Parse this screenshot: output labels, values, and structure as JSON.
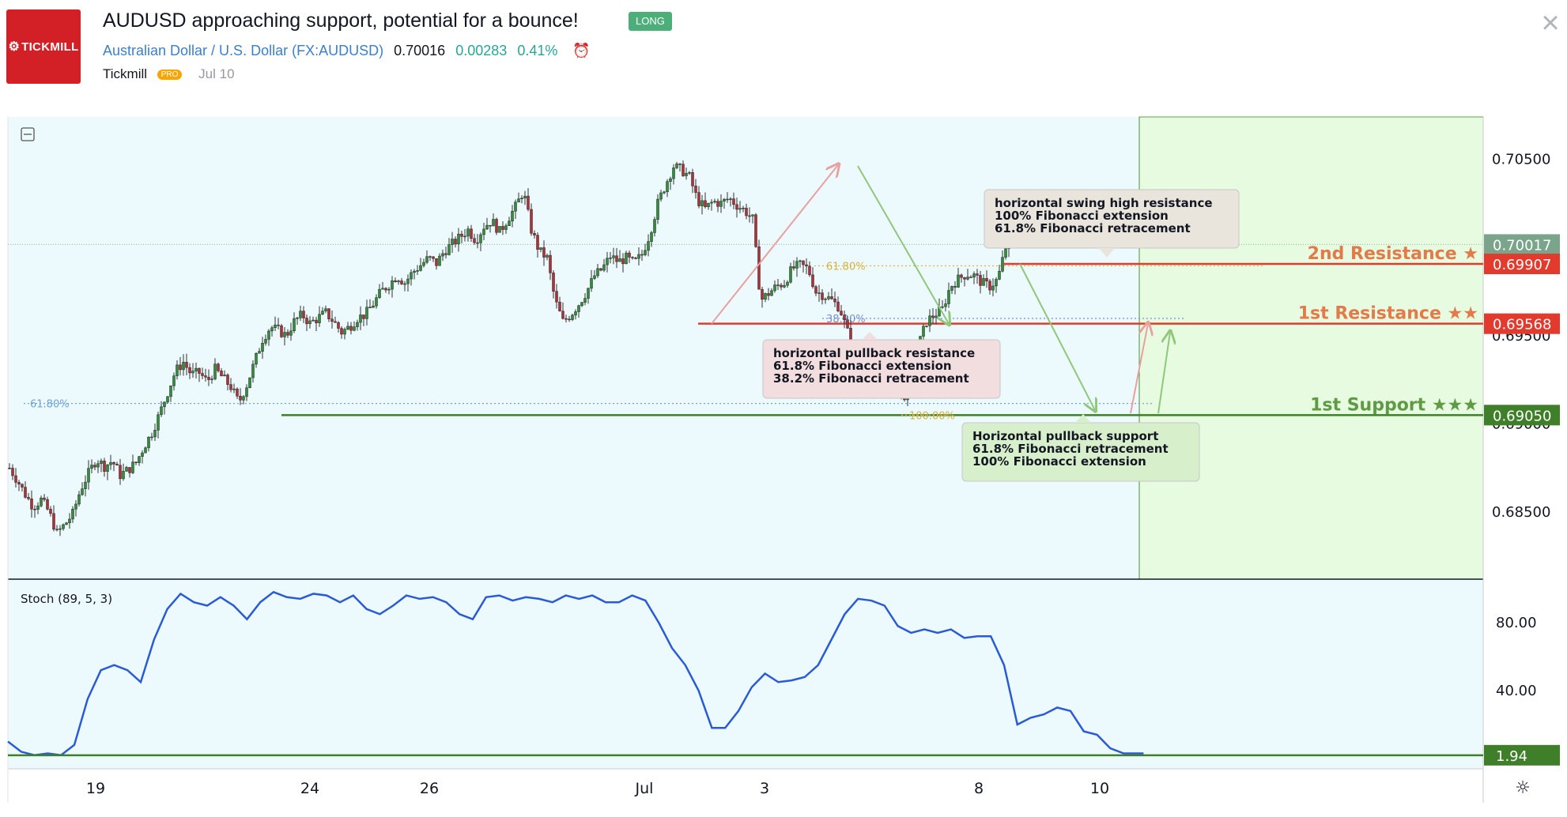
{
  "header": {
    "logo_text": "TICKMILL",
    "title": "AUDUSD approaching support, potential for a bounce!",
    "badge": "LONG",
    "symbol_name": "Australian Dollar / U.S. Dollar",
    "symbol_code": "(FX:AUDUSD)",
    "last_price": "0.70016",
    "change": "0.00283",
    "change_pct": "0.41%",
    "author": "Tickmill",
    "author_badge": "PRO",
    "date": "Jul 10"
  },
  "chart_data": {
    "type": "candlestick",
    "instrument": "AUDUSD",
    "x_ticks": [
      "19",
      "24",
      "26",
      "Jul",
      "3",
      "8",
      "10"
    ],
    "y_ticks": [
      "0.70500",
      "0.68500"
    ],
    "ylim": [
      0.6812,
      0.7074
    ],
    "price_series": [
      [
        0,
        0.6875
      ],
      [
        10,
        0.6868
      ],
      [
        20,
        0.686
      ],
      [
        30,
        0.6853
      ],
      [
        40,
        0.6857
      ],
      [
        50,
        0.685
      ],
      [
        60,
        0.6838
      ],
      [
        70,
        0.6843
      ],
      [
        80,
        0.6849
      ],
      [
        90,
        0.6863
      ],
      [
        100,
        0.6872
      ],
      [
        110,
        0.688
      ],
      [
        120,
        0.6876
      ],
      [
        130,
        0.6879
      ],
      [
        140,
        0.6871
      ],
      [
        150,
        0.6874
      ],
      [
        160,
        0.6878
      ],
      [
        170,
        0.6887
      ],
      [
        180,
        0.6895
      ],
      [
        190,
        0.6906
      ],
      [
        200,
        0.6918
      ],
      [
        210,
        0.693
      ],
      [
        220,
        0.6935
      ],
      [
        230,
        0.6928
      ],
      [
        240,
        0.6929
      ],
      [
        250,
        0.6924
      ],
      [
        260,
        0.6931
      ],
      [
        270,
        0.6926
      ],
      [
        280,
        0.6921
      ],
      [
        290,
        0.6912
      ],
      [
        300,
        0.6922
      ],
      [
        310,
        0.6935
      ],
      [
        320,
        0.6948
      ],
      [
        330,
        0.6955
      ],
      [
        340,
        0.6953
      ],
      [
        350,
        0.695
      ],
      [
        360,
        0.6958
      ],
      [
        370,
        0.6962
      ],
      [
        380,
        0.6957
      ],
      [
        390,
        0.696
      ],
      [
        400,
        0.6963
      ],
      [
        410,
        0.6958
      ],
      [
        420,
        0.6952
      ],
      [
        430,
        0.6955
      ],
      [
        440,
        0.696
      ],
      [
        450,
        0.6962
      ],
      [
        460,
        0.6968
      ],
      [
        470,
        0.6975
      ],
      [
        480,
        0.6979
      ],
      [
        490,
        0.6984
      ],
      [
        500,
        0.698
      ],
      [
        510,
        0.6986
      ],
      [
        520,
        0.699
      ],
      [
        530,
        0.6994
      ],
      [
        540,
        0.6991
      ],
      [
        550,
        0.6998
      ],
      [
        560,
        0.7002
      ],
      [
        570,
        0.7006
      ],
      [
        580,
        0.701
      ],
      [
        590,
        0.7004
      ],
      [
        600,
        0.7012
      ],
      [
        610,
        0.7015
      ],
      [
        620,
        0.7009
      ],
      [
        630,
        0.7016
      ],
      [
        640,
        0.7023
      ],
      [
        650,
        0.7032
      ],
      [
        660,
        0.701
      ],
      [
        670,
        0.6998
      ],
      [
        680,
        0.6994
      ],
      [
        690,
        0.697
      ],
      [
        700,
        0.6958
      ],
      [
        710,
        0.6962
      ],
      [
        720,
        0.6968
      ],
      [
        730,
        0.6975
      ],
      [
        740,
        0.6984
      ],
      [
        750,
        0.6988
      ],
      [
        760,
        0.6995
      ],
      [
        770,
        0.6992
      ],
      [
        780,
        0.6994
      ],
      [
        790,
        0.6991
      ],
      [
        800,
        0.6996
      ],
      [
        810,
        0.7008
      ],
      [
        820,
        0.7025
      ],
      [
        830,
        0.7036
      ],
      [
        840,
        0.7046
      ],
      [
        850,
        0.7044
      ],
      [
        860,
        0.704
      ],
      [
        870,
        0.7027
      ],
      [
        880,
        0.7022
      ],
      [
        890,
        0.7026
      ],
      [
        900,
        0.7025
      ],
      [
        910,
        0.7028
      ],
      [
        920,
        0.7024
      ],
      [
        930,
        0.7021
      ],
      [
        940,
        0.7016
      ],
      [
        950,
        0.697
      ],
      [
        960,
        0.6974
      ],
      [
        970,
        0.6978
      ],
      [
        980,
        0.698
      ],
      [
        990,
        0.6988
      ],
      [
        1000,
        0.699
      ],
      [
        1010,
        0.6988
      ],
      [
        1020,
        0.6975
      ],
      [
        1030,
        0.6973
      ],
      [
        1040,
        0.697
      ],
      [
        1050,
        0.6966
      ],
      [
        1060,
        0.6952
      ],
      [
        1070,
        0.6936
      ],
      [
        1080,
        0.6928
      ],
      [
        1090,
        0.6925
      ],
      [
        1100,
        0.6924
      ],
      [
        1110,
        0.6921
      ],
      [
        1120,
        0.6922
      ],
      [
        1130,
        0.6916
      ],
      [
        1140,
        0.6918
      ],
      [
        1150,
        0.6945
      ],
      [
        1160,
        0.6958
      ],
      [
        1170,
        0.6962
      ],
      [
        1180,
        0.6965
      ],
      [
        1190,
        0.6978
      ],
      [
        1200,
        0.6982
      ],
      [
        1210,
        0.6985
      ],
      [
        1220,
        0.6984
      ],
      [
        1230,
        0.698
      ],
      [
        1240,
        0.6978
      ],
      [
        1250,
        0.6982
      ],
      [
        1260,
        0.7
      ],
      [
        1266,
        0.7004
      ]
    ],
    "current_price_line": 0.70017,
    "axis_badges": [
      {
        "value": 0.70017,
        "label": "0.70017",
        "color": "#7aa58a"
      },
      {
        "value": 0.69907,
        "label": "0.69907",
        "color": "#e23b2e"
      },
      {
        "value": 0.69568,
        "label": "0.69568",
        "color": "#e23b2e"
      },
      {
        "value": 0.6905,
        "label": "0.69050",
        "color": "#3f7f2a"
      }
    ],
    "levels": [
      {
        "name": "2nd Resistance ★",
        "value": 0.69907,
        "color": "#e23b2e",
        "label_color": "#e27a4a"
      },
      {
        "name": "1st Resistance ★★",
        "value": 0.69568,
        "color": "#e23b2e",
        "label_color": "#e27a4a"
      },
      {
        "name": "1st Support ★★★",
        "value": 0.6905,
        "color": "#3f7f2a",
        "label_color": "#5f9a45"
      }
    ],
    "fib_labels": [
      "61.80%",
      "61.80%",
      "38.20%",
      "100.00%"
    ],
    "annotations": [
      {
        "lines": [
          "horizontal swing high resistance",
          "100% Fibonacci extension",
          "61.8% Fibonacci retracement"
        ],
        "bg": "#e9e4dc"
      },
      {
        "lines": [
          "horizontal pullback resistance",
          "61.8% Fibonacci extension",
          "38.2% Fibonacci retracement"
        ],
        "bg": "#f2dede"
      },
      {
        "lines": [
          "Horizontal pullback support",
          "61.8% Fibonacci  retracement",
          "100% Fibonacci extension"
        ],
        "bg": "#d8efcc"
      }
    ],
    "stoch": {
      "label": "Stoch (89, 5, 3)",
      "y_ticks": [
        "80.00",
        "40.00"
      ],
      "ylim": [
        0,
        100
      ],
      "current": "1.94",
      "values": [
        [
          0,
          10
        ],
        [
          20,
          4
        ],
        [
          40,
          2
        ],
        [
          60,
          3
        ],
        [
          80,
          2
        ],
        [
          100,
          8
        ],
        [
          120,
          35
        ],
        [
          140,
          52
        ],
        [
          160,
          55
        ],
        [
          180,
          52
        ],
        [
          200,
          45
        ],
        [
          220,
          70
        ],
        [
          240,
          88
        ],
        [
          260,
          97
        ],
        [
          280,
          92
        ],
        [
          300,
          90
        ],
        [
          320,
          95
        ],
        [
          340,
          90
        ],
        [
          360,
          82
        ],
        [
          380,
          92
        ],
        [
          400,
          98
        ],
        [
          420,
          95
        ],
        [
          440,
          94
        ],
        [
          460,
          97
        ],
        [
          480,
          96
        ],
        [
          500,
          92
        ],
        [
          520,
          96
        ],
        [
          540,
          88
        ],
        [
          560,
          85
        ],
        [
          580,
          90
        ],
        [
          600,
          96
        ],
        [
          620,
          94
        ],
        [
          640,
          95
        ],
        [
          660,
          92
        ],
        [
          680,
          85
        ],
        [
          700,
          82
        ],
        [
          720,
          95
        ],
        [
          740,
          96
        ],
        [
          760,
          93
        ],
        [
          780,
          95
        ],
        [
          800,
          94
        ],
        [
          820,
          92
        ],
        [
          840,
          96
        ],
        [
          860,
          94
        ],
        [
          880,
          96
        ],
        [
          900,
          92
        ],
        [
          920,
          92
        ],
        [
          940,
          96
        ],
        [
          960,
          93
        ],
        [
          980,
          80
        ],
        [
          1000,
          65
        ],
        [
          1020,
          55
        ],
        [
          1040,
          40
        ],
        [
          1060,
          18
        ],
        [
          1080,
          18
        ],
        [
          1100,
          28
        ],
        [
          1120,
          42
        ],
        [
          1140,
          50
        ],
        [
          1160,
          45
        ],
        [
          1180,
          46
        ],
        [
          1200,
          48
        ],
        [
          1220,
          55
        ],
        [
          1240,
          70
        ],
        [
          1260,
          85
        ],
        [
          1280,
          94
        ],
        [
          1300,
          93
        ],
        [
          1320,
          90
        ],
        [
          1340,
          78
        ],
        [
          1360,
          74
        ],
        [
          1380,
          76
        ],
        [
          1400,
          74
        ],
        [
          1420,
          76
        ],
        [
          1440,
          71
        ],
        [
          1460,
          72
        ],
        [
          1480,
          72
        ],
        [
          1500,
          55
        ],
        [
          1520,
          20
        ],
        [
          1540,
          24
        ],
        [
          1560,
          26
        ],
        [
          1580,
          30
        ],
        [
          1600,
          28
        ],
        [
          1620,
          16
        ],
        [
          1640,
          14
        ],
        [
          1660,
          6
        ],
        [
          1680,
          3
        ],
        [
          1700,
          3
        ],
        [
          1710,
          3
        ]
      ]
    }
  }
}
